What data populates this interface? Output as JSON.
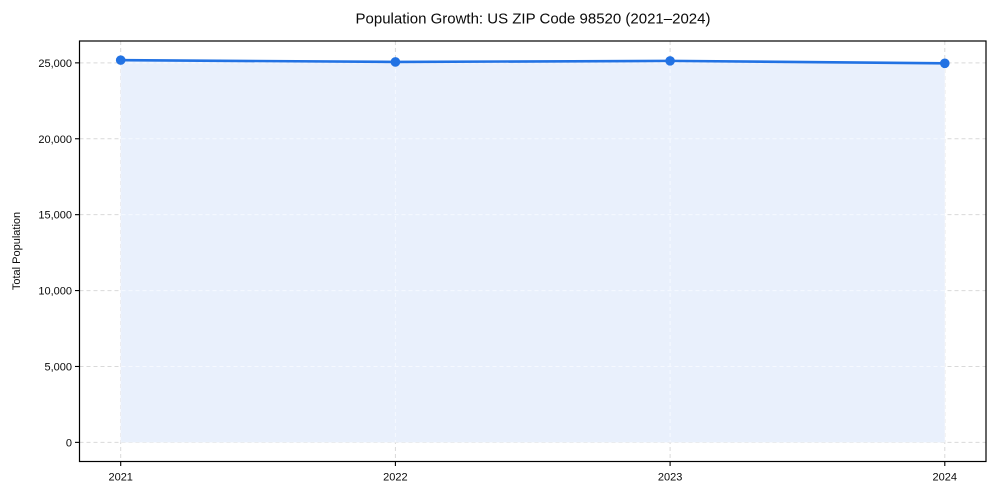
{
  "page": {
    "title": "Population Growth: US ZIP Code 98520 (2021–2024)"
  },
  "chart_data": {
    "type": "area",
    "title": "Population Growth: US ZIP Code 98520 (2021–2024)",
    "xlabel": "",
    "ylabel": "Total Population",
    "x": [
      2021,
      2022,
      2023,
      2024
    ],
    "values": [
      25180,
      25060,
      25130,
      24970
    ],
    "x_tick_labels": [
      "2021",
      "2022",
      "2023",
      "2024"
    ],
    "y_ticks": [
      0,
      5000,
      10000,
      15000,
      20000,
      25000
    ],
    "y_tick_labels": [
      "0",
      "5,000",
      "10,000",
      "15,000",
      "20,000",
      "25,000"
    ],
    "xlim": [
      2020.85,
      2024.15
    ],
    "ylim": [
      -1260,
      26440
    ],
    "grid": true,
    "grid_style": "dashed",
    "legend": "none",
    "marker": "circle",
    "colors": {
      "line": "#2272e3",
      "marker": "#2272e3",
      "fill": "#e9f0fc",
      "grid": "#d9d9d9",
      "grid_on_fill": "#f6f9ff",
      "axis": "#000000",
      "text": "#0a0a0a",
      "background": "#ffffff"
    }
  }
}
